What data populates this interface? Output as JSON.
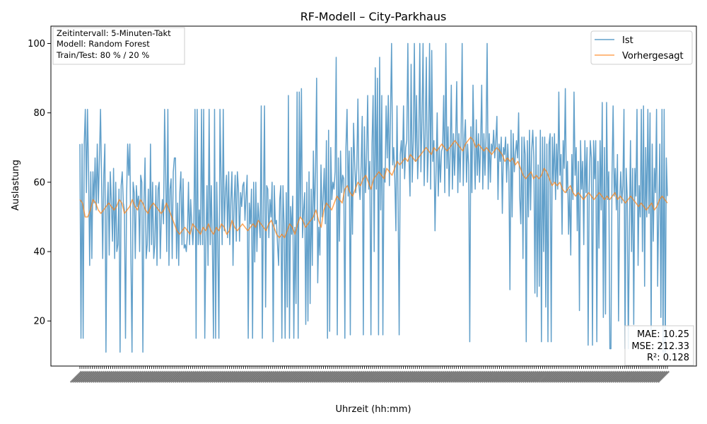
{
  "chart_data": {
    "type": "line",
    "title": "RF-Modell – City-Parkhaus",
    "xlabel": "Uhrzeit (hh:mm)",
    "ylabel": "Auslastung",
    "ylim": [
      7,
      105
    ],
    "yticks": [
      20,
      40,
      60,
      80,
      100
    ],
    "x_interval_minutes": 5,
    "x_tick_rotation_deg": 45,
    "grid": false,
    "legend_position": "top-right",
    "series": [
      {
        "name": "Ist",
        "color": "#1f77b4",
        "opacity": 0.7,
        "values": [
          71,
          15,
          71,
          15,
          71,
          81,
          57,
          81,
          63,
          36,
          63,
          38,
          63,
          54,
          67,
          52,
          71,
          54,
          67,
          81,
          60,
          38,
          62,
          71,
          11,
          52,
          60,
          39,
          63,
          54,
          43,
          64,
          38,
          60,
          40,
          42,
          58,
          11,
          59,
          63,
          54,
          52,
          15,
          56,
          71,
          62,
          71,
          38,
          11,
          60,
          57,
          38,
          59,
          53,
          56,
          40,
          62,
          60,
          11,
          54,
          67,
          38,
          42,
          58,
          40,
          71,
          42,
          60,
          38,
          42,
          59,
          36,
          58,
          60,
          38,
          50,
          55,
          48,
          81,
          62,
          40,
          81,
          36,
          58,
          61,
          38,
          63,
          67,
          67,
          38,
          54,
          36,
          57,
          63,
          42,
          61,
          41,
          42,
          40,
          45,
          60,
          42,
          55,
          48,
          42,
          49,
          81,
          15,
          81,
          42,
          52,
          42,
          81,
          42,
          81,
          15,
          42,
          59,
          36,
          81,
          42,
          59,
          42,
          15,
          81,
          15,
          60,
          42,
          15,
          81,
          61,
          42,
          81,
          46,
          57,
          62,
          44,
          63,
          42,
          55,
          63,
          36,
          54,
          62,
          43,
          63,
          58,
          43,
          57,
          53,
          59,
          60,
          49,
          56,
          62,
          15,
          54,
          48,
          58,
          15,
          60,
          37,
          60,
          40,
          54,
          49,
          44,
          82,
          15,
          54,
          82,
          24,
          59,
          58,
          44,
          55,
          50,
          60,
          14,
          59,
          48,
          49,
          42,
          36,
          55,
          59,
          15,
          59,
          48,
          15,
          57,
          24,
          85,
          15,
          53,
          45,
          56,
          15,
          47,
          25,
          86,
          15,
          86,
          50,
          87,
          44,
          52,
          57,
          19,
          60,
          20,
          63,
          25,
          58,
          36,
          69,
          49,
          63,
          90,
          31,
          47,
          39,
          65,
          50,
          55,
          64,
          48,
          72,
          15,
          75,
          17,
          70,
          55,
          60,
          58,
          63,
          96,
          16,
          67,
          43,
          69,
          57,
          62,
          61,
          15,
          70,
          81,
          56,
          69,
          16,
          70,
          45,
          77,
          66,
          57,
          64,
          84,
          59,
          55,
          65,
          79,
          16,
          76,
          57,
          67,
          85,
          58,
          66,
          16,
          71,
          85,
          40,
          93,
          58,
          90,
          16,
          96,
          52,
          85,
          16,
          64,
          60,
          82,
          67,
          85,
          59,
          79,
          100,
          65,
          70,
          61,
          46,
          82,
          55,
          16,
          68,
          72,
          64,
          82,
          61,
          70,
          72,
          100,
          67,
          56,
          94,
          60,
          72,
          100,
          66,
          85,
          61,
          70,
          100,
          63,
          78,
          100,
          59,
          74,
          96,
          60,
          70,
          100,
          58,
          98,
          66,
          72,
          46,
          64,
          80,
          56,
          70,
          60,
          69,
          70,
          85,
          57,
          100,
          64,
          76,
          56,
          69,
          88,
          58,
          74,
          62,
          72,
          89,
          57,
          74,
          60,
          73,
          100,
          59,
          72,
          78,
          60,
          71,
          65,
          14,
          76,
          57,
          88,
          70,
          58,
          78,
          62,
          74,
          60,
          71,
          88,
          58,
          74,
          62,
          73,
          100,
          58,
          74,
          60,
          71,
          69,
          75,
          67,
          72,
          79,
          55,
          71,
          66,
          73,
          51,
          70,
          68,
          73,
          60,
          71,
          63,
          29,
          75,
          50,
          74,
          63,
          68,
          72,
          67,
          80,
          56,
          48,
          73,
          38,
          73,
          68,
          14,
          72,
          50,
          75,
          52,
          69,
          75,
          67,
          28,
          73,
          27,
          65,
          30,
          75,
          14,
          73,
          40,
          73,
          24,
          71,
          14,
          71,
          74,
          14,
          73,
          60,
          74,
          55,
          71,
          58,
          86,
          62,
          68,
          45,
          72,
          64,
          87,
          57,
          66,
          45,
          58,
          39,
          68,
          55,
          86,
          62,
          70,
          46,
          66,
          23,
          72,
          58,
          66,
          42,
          72,
          57,
          70,
          13,
          58,
          72,
          67,
          13,
          72,
          61,
          72,
          14,
          66,
          41,
          72,
          52,
          83,
          21,
          70,
          22,
          83,
          55,
          63,
          12,
          12,
          62,
          82,
          56,
          64,
          52,
          68,
          20,
          54,
          63,
          54,
          59,
          81,
          12,
          64,
          56,
          12,
          47,
          72,
          40,
          64,
          19,
          64,
          56,
          81,
          36,
          59,
          50,
          81,
          40,
          82,
          30,
          70,
          50,
          81,
          51,
          80,
          17,
          71,
          43,
          64,
          57,
          81,
          30,
          52,
          71,
          21,
          81,
          11,
          81,
          10,
          67,
          56
        ],
        "sample_every_nth": 1
      },
      {
        "name": "Vorhergesagt",
        "color": "#ff7f0e",
        "opacity": 0.7,
        "values": [
          55,
          54,
          50,
          50,
          52,
          55,
          54,
          52,
          51,
          52,
          53,
          54,
          53,
          52,
          53,
          55,
          54,
          51,
          52,
          53,
          55,
          53,
          52,
          55,
          54,
          52,
          51,
          53,
          54,
          53,
          52,
          51,
          52,
          54,
          52,
          50,
          48,
          46,
          45,
          46,
          47,
          46,
          45,
          48,
          47,
          46,
          45,
          47,
          46,
          48,
          46,
          45,
          47,
          46,
          48,
          47,
          45,
          46,
          49,
          47,
          46,
          47,
          48,
          47,
          46,
          47,
          48,
          47,
          49,
          48,
          47,
          46,
          48,
          49,
          47,
          45,
          44,
          45,
          44,
          46,
          48,
          47,
          45,
          48,
          50,
          49,
          47,
          48,
          49,
          50,
          52,
          49,
          47,
          52,
          54,
          53,
          52,
          54,
          56,
          55,
          54,
          58,
          59,
          57,
          56,
          58,
          60,
          59,
          61,
          62,
          60,
          58,
          61,
          62,
          63,
          62,
          61,
          64,
          63,
          62,
          64,
          66,
          65,
          66,
          67,
          66,
          68,
          67,
          66,
          67,
          68,
          69,
          70,
          69,
          68,
          70,
          69,
          70,
          71,
          70,
          69,
          70,
          71,
          72,
          71,
          70,
          69,
          71,
          72,
          73,
          72,
          70,
          71,
          70,
          69,
          70,
          69,
          68,
          69,
          70,
          69,
          68,
          66,
          67,
          66,
          67,
          65,
          66,
          64,
          62,
          61,
          62,
          63,
          61,
          62,
          61,
          62,
          64,
          63,
          61,
          59,
          60,
          59,
          60,
          58,
          57,
          58,
          59,
          57,
          56,
          57,
          56,
          55,
          56,
          57,
          56,
          55,
          56,
          57,
          56,
          55,
          56,
          55,
          56,
          57,
          55,
          56,
          55,
          54,
          55,
          56,
          55,
          54,
          53,
          54,
          53,
          52,
          53,
          54,
          52,
          53,
          55,
          56,
          55,
          54
        ]
      }
    ],
    "x_tick_labels_visible": false
  },
  "info_box": {
    "line1": "Zeitintervall: 5-Minuten-Takt",
    "line2": "Modell: Random Forest",
    "line3": "Train/Test: 80 % / 20 %"
  },
  "metrics_box": {
    "mae": "MAE: 10.25",
    "mse": "MSE: 212.33",
    "r2": "R²: 0.128"
  },
  "legend": {
    "ist": "Ist",
    "vorhergesagt": "Vorhergesagt"
  }
}
